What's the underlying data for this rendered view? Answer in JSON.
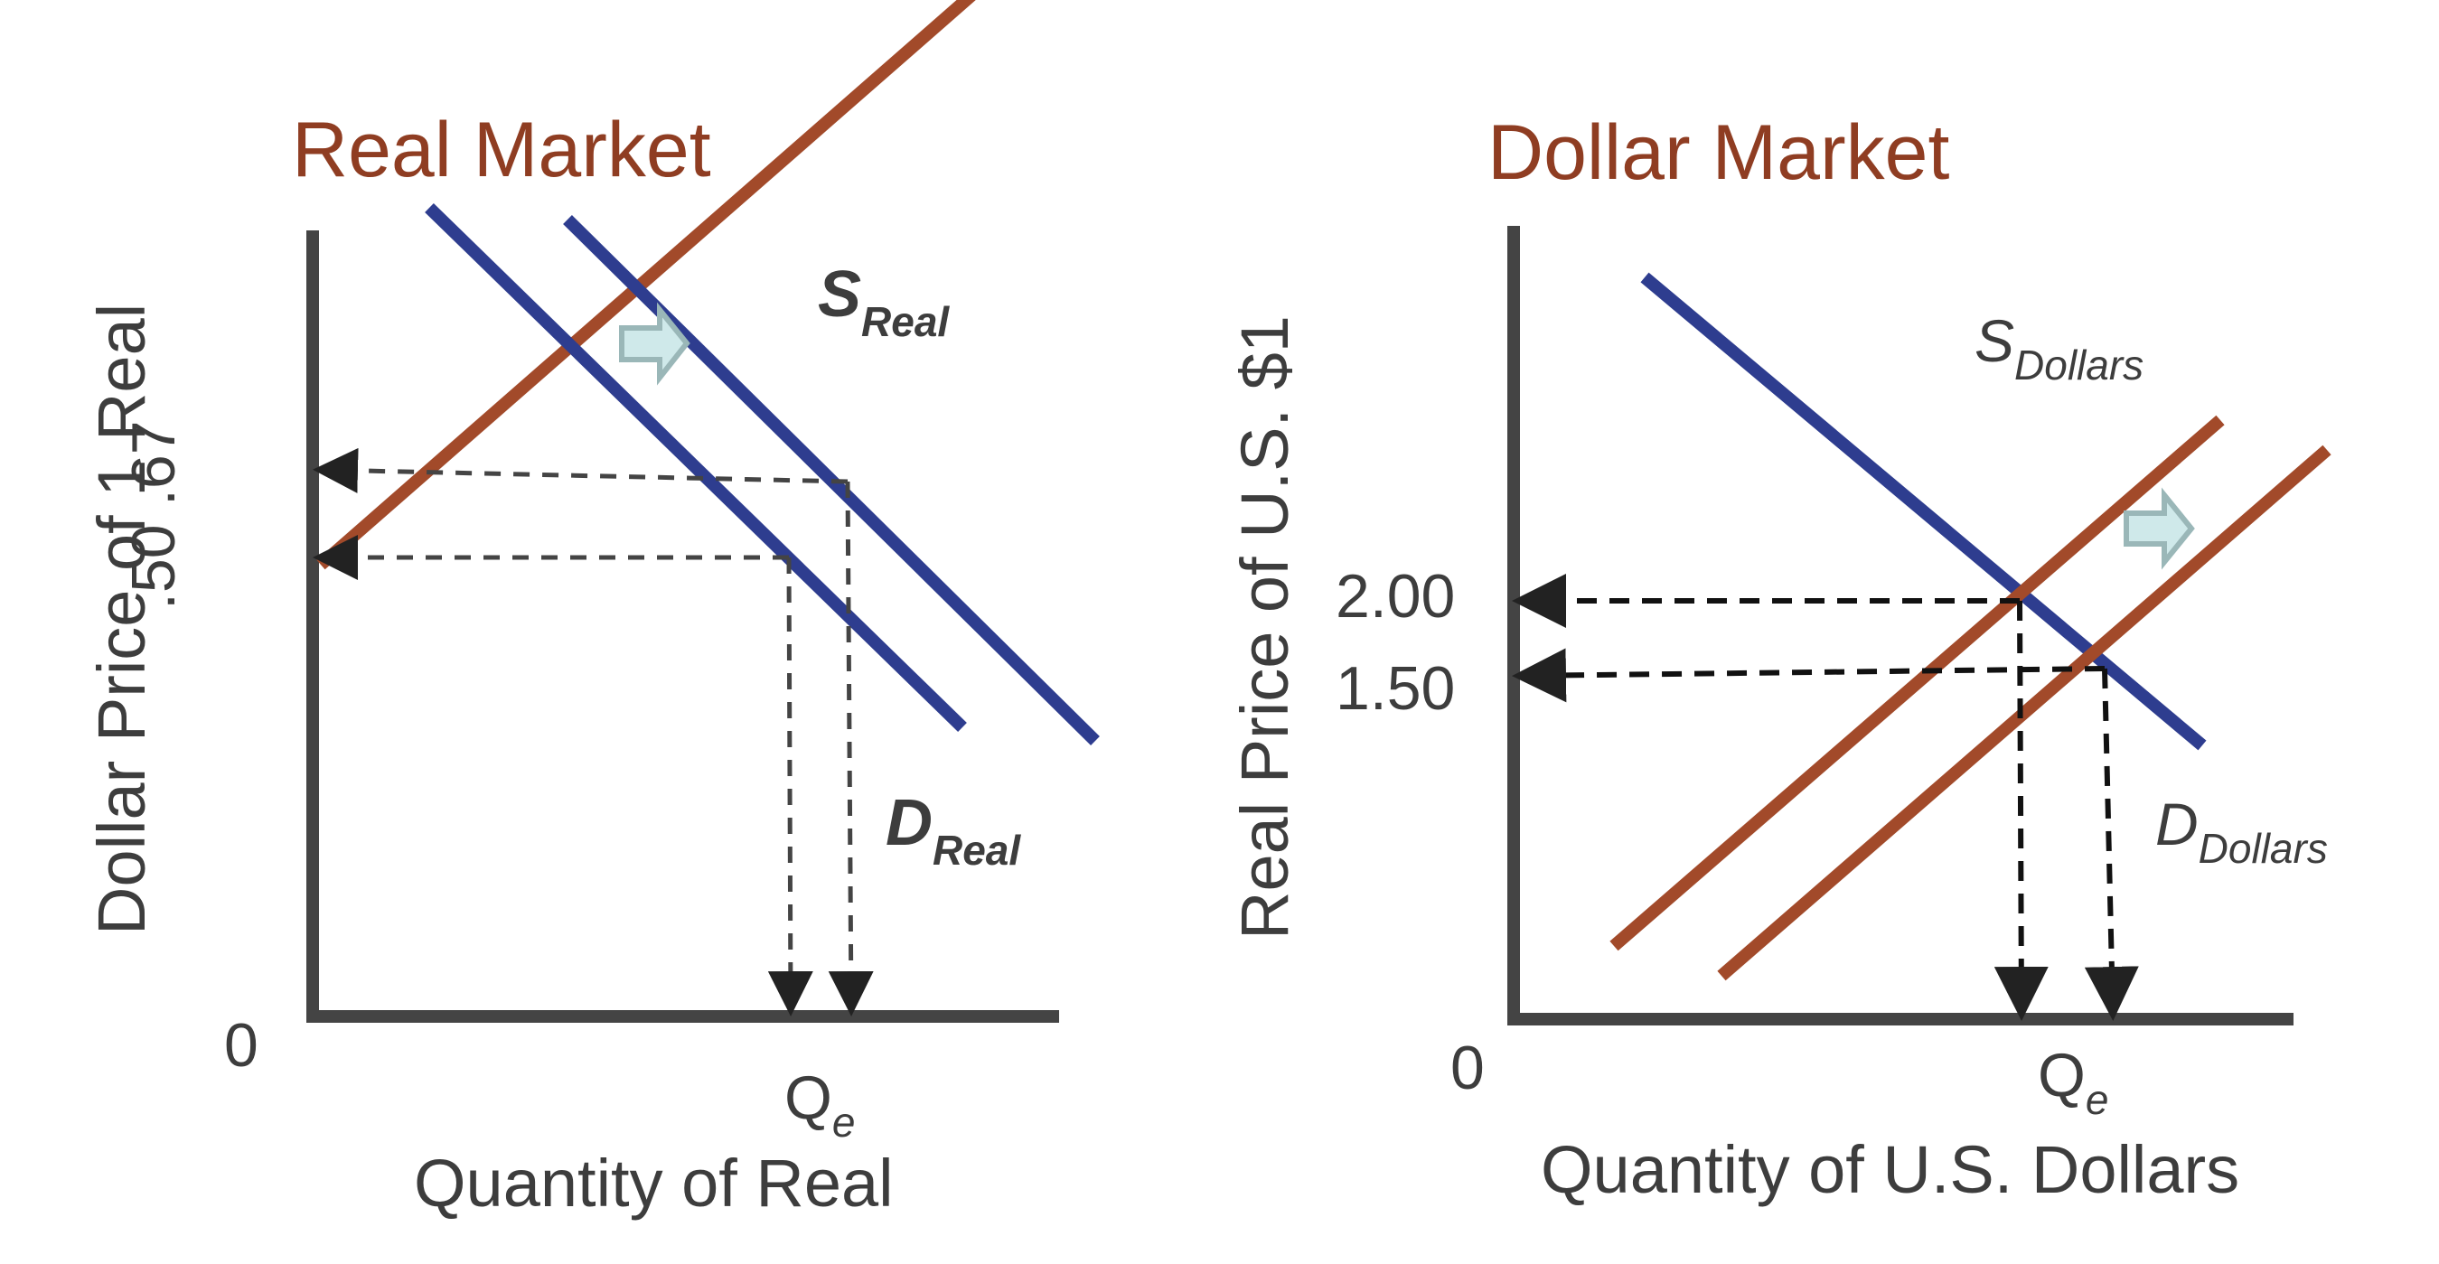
{
  "left": {
    "title": "Real Market",
    "y_axis_label": "Dollar Price of 1 Real",
    "x_axis_label": "Quantity of Real",
    "origin_label": "0",
    "price_ticks": [
      ".67",
      ".50"
    ],
    "quantity_tick_main": "Q",
    "quantity_tick_sub": "e",
    "supply_label_main": "S",
    "supply_label_sub": "Real",
    "demand_label_main": "D",
    "demand_label_sub": "Real"
  },
  "right": {
    "title": "Dollar Market",
    "y_axis_label": "Real Price of U.S. $1",
    "x_axis_label": "Quantity of U.S. Dollars",
    "origin_label": "0",
    "price_ticks": [
      "2.00",
      "1.50"
    ],
    "quantity_tick_main": "Q",
    "quantity_tick_sub": "e",
    "supply_label_main": "S",
    "supply_label_sub": "Dollars",
    "demand_label_main": "D",
    "demand_label_sub": "Dollars"
  },
  "colors": {
    "supply_curve": "#a24a2a",
    "demand_curve": "#2e3d8f",
    "axis": "#3d3d3d",
    "shift_arrow": "#cfe9ea",
    "title": "#8f3d22"
  },
  "icons": {
    "shift_arrow": "right-arrow-icon"
  }
}
